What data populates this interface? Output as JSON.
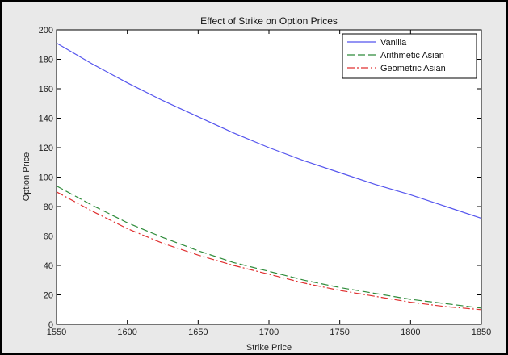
{
  "chart_data": {
    "type": "line",
    "title": "Effect of Strike on Option Prices",
    "xlabel": "Strike Price",
    "ylabel": "Option Price",
    "xlim": [
      1550,
      1850
    ],
    "ylim": [
      0,
      200
    ],
    "xticks": [
      1550,
      1600,
      1650,
      1700,
      1750,
      1800,
      1850
    ],
    "yticks": [
      0,
      20,
      40,
      60,
      80,
      100,
      120,
      140,
      160,
      180,
      200
    ],
    "grid": false,
    "legend_position": "top-right",
    "x": [
      1550,
      1575,
      1600,
      1625,
      1650,
      1675,
      1700,
      1725,
      1750,
      1775,
      1800,
      1825,
      1850
    ],
    "series": [
      {
        "name": "Vanilla",
        "color": "#5555ee",
        "style": "solid",
        "values": [
          191,
          177,
          164,
          152,
          141,
          130,
          120,
          111,
          103,
          95,
          88,
          80,
          72
        ]
      },
      {
        "name": "Arithmetic Asian",
        "color": "#2e8b3a",
        "style": "dashed",
        "values": [
          94,
          81,
          69,
          59,
          50,
          42,
          36,
          30,
          25,
          21,
          17,
          14,
          11
        ]
      },
      {
        "name": "Geometric Asian",
        "color": "#e03030",
        "style": "dashdot",
        "values": [
          90,
          77,
          65,
          55,
          47,
          40,
          34,
          28,
          23,
          19,
          15,
          12,
          10
        ]
      }
    ]
  }
}
